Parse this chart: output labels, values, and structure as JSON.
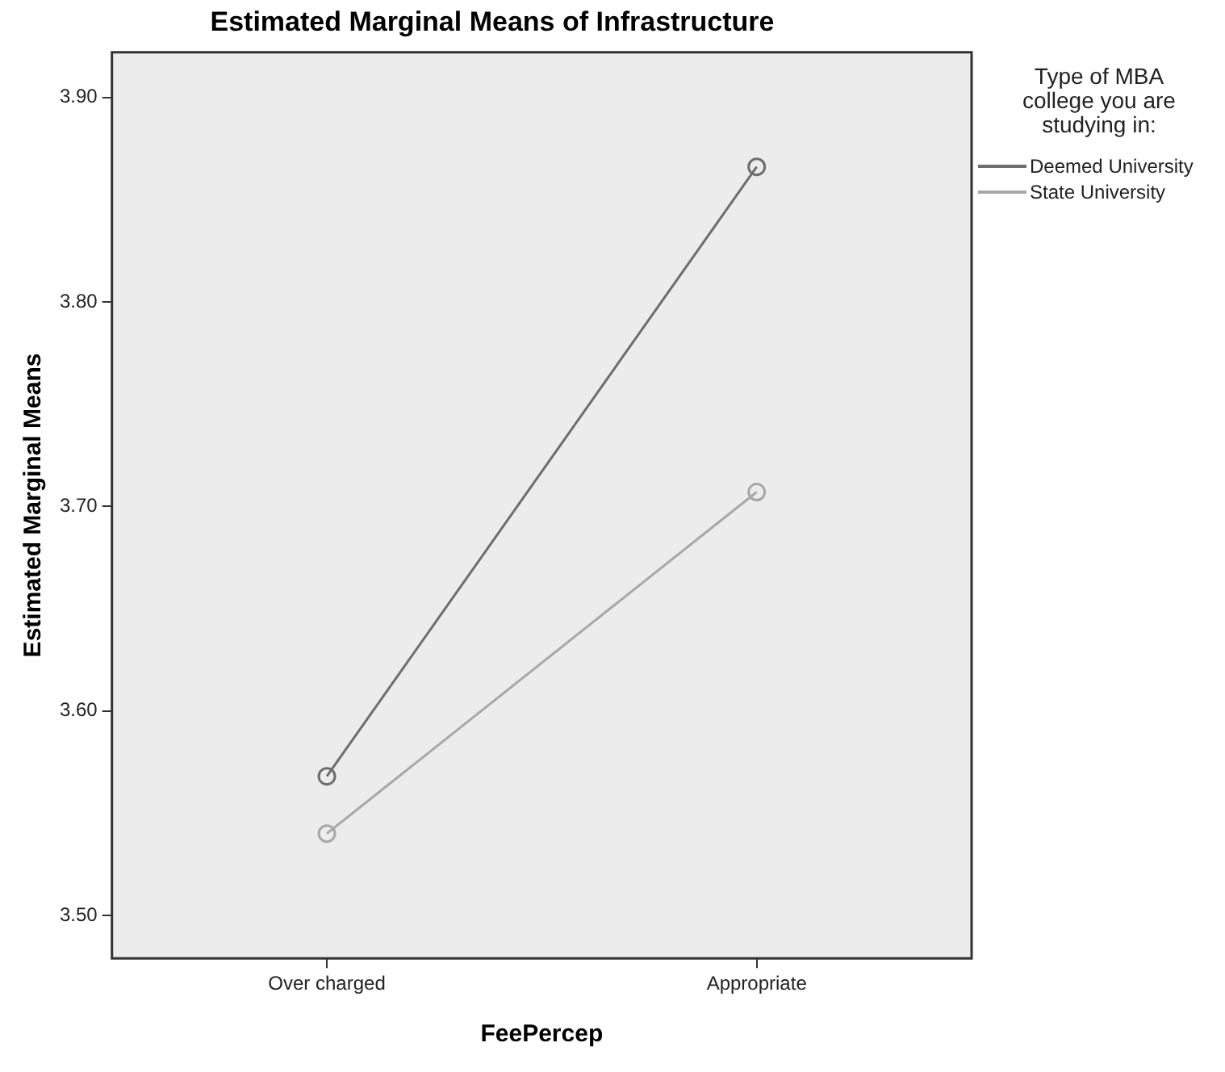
{
  "chart_data": {
    "type": "line",
    "title": "Estimated Marginal Means of Infrastructure",
    "xlabel": "FeePercep",
    "ylabel": "Estimated Marginal Means",
    "legend_title": "Type of MBA college you are studying in:",
    "categories": [
      "Over charged",
      "Appropriate"
    ],
    "series": [
      {
        "name": "Deemed University",
        "color": "#6e6e6e",
        "values": [
          3.568,
          3.866
        ]
      },
      {
        "name": "State University",
        "color": "#a8a8a8",
        "values": [
          3.54,
          3.707
        ]
      }
    ],
    "ylim": [
      3.479,
      3.922
    ],
    "yticks": [
      {
        "value": 3.5,
        "label": "3.50"
      },
      {
        "value": 3.6,
        "label": "3.60"
      },
      {
        "value": 3.7,
        "label": "3.70"
      },
      {
        "value": 3.8,
        "label": "3.80"
      },
      {
        "value": 3.9,
        "label": "3.90"
      }
    ],
    "grid": false,
    "legend": "right",
    "marker": "circle",
    "line_style": "solid"
  }
}
